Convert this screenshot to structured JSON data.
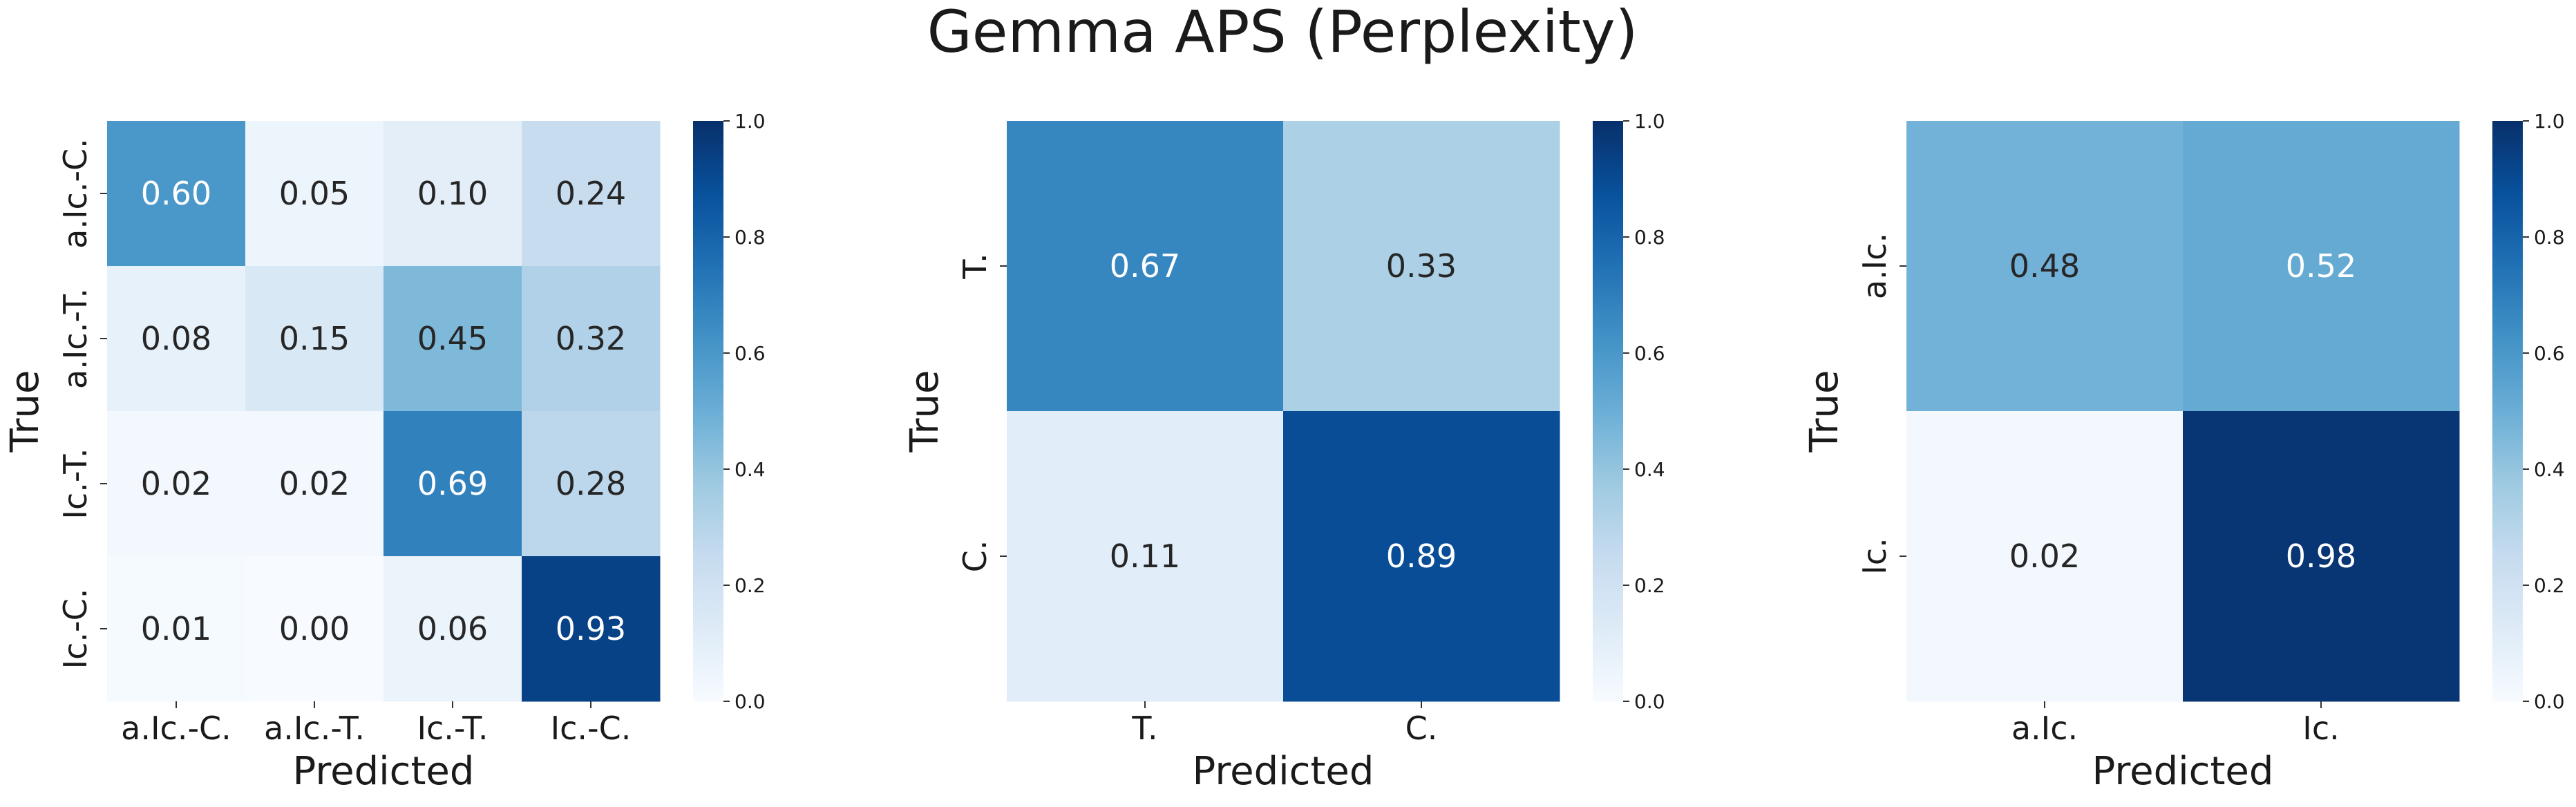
{
  "figure_title": "Gemma APS (Perplexity)",
  "chart_data": [
    {
      "type": "heatmap",
      "xlabel": "Predicted",
      "ylabel": "True",
      "x_categories": [
        "a.Ic.-C.",
        "a.Ic.-T.",
        "Ic.-T.",
        "Ic.-C."
      ],
      "y_categories": [
        "a.Ic.-C.",
        "a.Ic.-T.",
        "Ic.-T.",
        "Ic.-C."
      ],
      "values": [
        [
          0.6,
          0.05,
          0.1,
          0.24
        ],
        [
          0.08,
          0.15,
          0.45,
          0.32
        ],
        [
          0.02,
          0.02,
          0.69,
          0.28
        ],
        [
          0.01,
          0.0,
          0.06,
          0.93
        ]
      ],
      "colorbar": {
        "range": [
          0.0,
          1.0
        ],
        "ticks": [
          "0.0",
          "0.2",
          "0.4",
          "0.6",
          "0.8",
          "1.0"
        ],
        "colormap": "Blues"
      }
    },
    {
      "type": "heatmap",
      "xlabel": "Predicted",
      "ylabel": "True",
      "x_categories": [
        "T.",
        "C."
      ],
      "y_categories": [
        "T.",
        "C."
      ],
      "values": [
        [
          0.67,
          0.33
        ],
        [
          0.11,
          0.89
        ]
      ],
      "colorbar": {
        "range": [
          0.0,
          1.0
        ],
        "ticks": [
          "0.0",
          "0.2",
          "0.4",
          "0.6",
          "0.8",
          "1.0"
        ],
        "colormap": "Blues"
      }
    },
    {
      "type": "heatmap",
      "xlabel": "Predicted",
      "ylabel": "True",
      "x_categories": [
        "a.Ic.",
        "Ic."
      ],
      "y_categories": [
        "a.Ic.",
        "Ic."
      ],
      "values": [
        [
          0.48,
          0.52
        ],
        [
          0.02,
          0.98
        ]
      ],
      "colorbar": {
        "range": [
          0.0,
          1.0
        ],
        "ticks": [
          "0.0",
          "0.2",
          "0.4",
          "0.6",
          "0.8",
          "1.0"
        ],
        "colormap": "Blues"
      }
    }
  ]
}
